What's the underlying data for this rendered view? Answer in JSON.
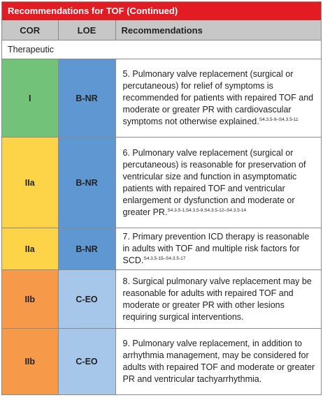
{
  "title": "Recommendations for TOF (Continued)",
  "headers": {
    "cor": "COR",
    "loe": "LOE",
    "recommendations": "Recommendations"
  },
  "section": "Therapeutic",
  "colors": {
    "title_bar": "#e31b23",
    "header_bg": "#c7c7c7",
    "cor_I": "#72c27a",
    "cor_IIa": "#fdd447",
    "cor_IIb": "#f69a49",
    "loe_B_NR": "#5f97d3",
    "loe_C_EO": "#a6c7ea"
  },
  "rows": [
    {
      "cor": "I",
      "loe": "B-NR",
      "text": "5. Pulmonary valve replacement (surgical or percutaneous) for relief of symptoms is recommended for patients with repaired TOF and moderate or greater PR with cardiovascular symptoms not otherwise explained.",
      "refs": "S4.3.5-9–S4.3.5-11"
    },
    {
      "cor": "IIa",
      "loe": "B-NR",
      "text": "6. Pulmonary valve replacement (surgical or percutaneous) is reasonable for preservation of ventricular size and function in asymptomatic patients with repaired TOF and ventricular enlargement or dysfunction and moderate or greater PR.",
      "refs": "S4.3.5-1,S4.3.5-9,S4.3.5-12–S4.3.5-14"
    },
    {
      "cor": "IIa",
      "loe": "B-NR",
      "text": "7. Primary prevention ICD therapy is reasonable in adults with TOF and multiple risk factors for SCD.",
      "refs": "S4.3.5-15–S4.3.5-17"
    },
    {
      "cor": "IIb",
      "loe": "C-EO",
      "text": "8. Surgical pulmonary valve replacement may be reasonable for adults with repaired TOF and moderate or greater PR with other lesions requiring surgical interventions.",
      "refs": ""
    },
    {
      "cor": "IIb",
      "loe": "C-EO",
      "text": "9. Pulmonary valve replacement, in addition to arrhythmia management, may be considered for adults with repaired TOF and moderate or greater PR and ventricular tachyarrhythmia.",
      "refs": ""
    }
  ]
}
